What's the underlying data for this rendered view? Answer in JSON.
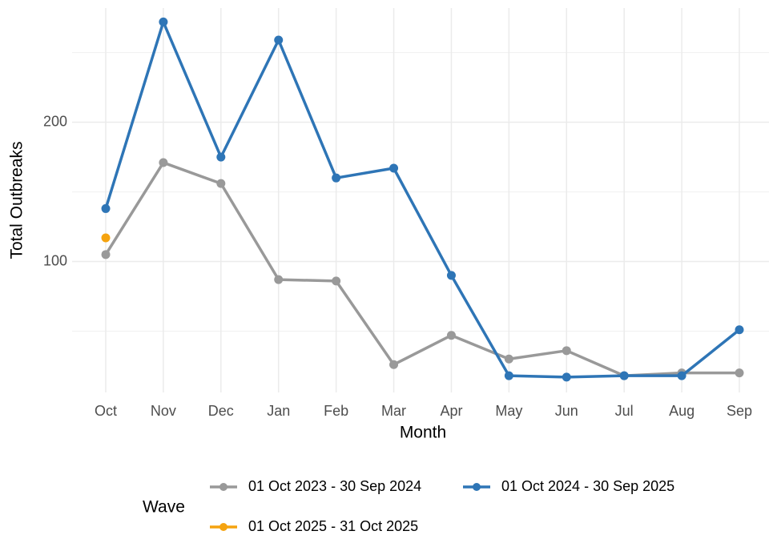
{
  "chart_data": {
    "type": "line",
    "x_label": "Month",
    "y_label": "Total Outbreaks",
    "legend_title": "Wave",
    "categories": [
      "Oct",
      "Nov",
      "Dec",
      "Jan",
      "Feb",
      "Mar",
      "Apr",
      "May",
      "Jun",
      "Jul",
      "Aug",
      "Sep"
    ],
    "series": [
      {
        "name": "01 Oct 2023 - 30 Sep 2024",
        "color": "#999999",
        "values": [
          105,
          171,
          156,
          87,
          86,
          26,
          47,
          30,
          36,
          18,
          20,
          20
        ]
      },
      {
        "name": "01 Oct 2024 - 30 Sep 2025",
        "color": "#2e75b6",
        "values": [
          138,
          272,
          175,
          259,
          160,
          167,
          90,
          18,
          17,
          18,
          18,
          51
        ]
      },
      {
        "name": "01 Oct 2025 - 31 Oct 2025",
        "color": "#f5a30f",
        "values": [
          117,
          null,
          null,
          null,
          null,
          null,
          null,
          null,
          null,
          null,
          null,
          null
        ]
      }
    ],
    "ylim": [
      6,
      282
    ],
    "yticks": [
      100,
      200
    ],
    "yminor": [
      50,
      150,
      250
    ],
    "grid": true,
    "legend": "bottom"
  }
}
